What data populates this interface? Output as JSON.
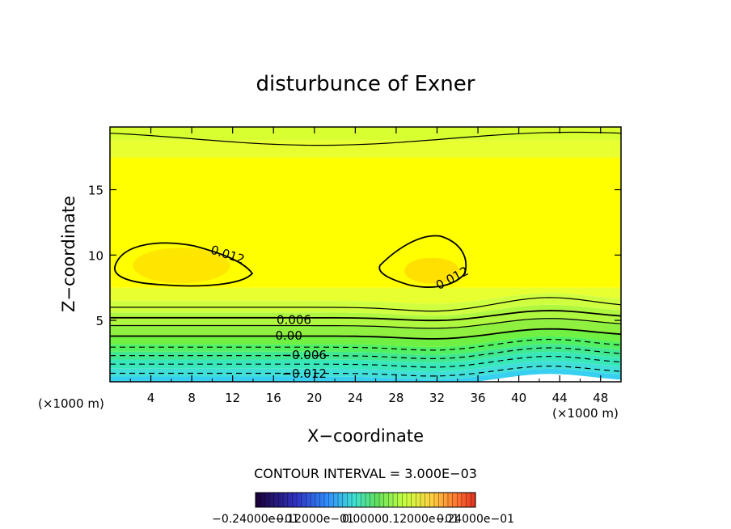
{
  "chart_data": {
    "type": "contour",
    "title": "disturbunce of Exner",
    "xlabel": "X−coordinate",
    "ylabel": "Z−coordinate",
    "x_unit": "(×1000 m)",
    "y_unit": "(×1000 m)",
    "xlim": [
      0,
      50
    ],
    "ylim": [
      0.3,
      19.8
    ],
    "xticks": [
      4,
      8,
      12,
      16,
      20,
      24,
      28,
      32,
      36,
      40,
      44,
      48
    ],
    "yticks": [
      5,
      10,
      15
    ],
    "contour_interval_text": "CONTOUR INTERVAL = 3.000E−03",
    "contour_labels": [
      {
        "text": "0.012",
        "x": 11.5,
        "z": 10.0
      },
      {
        "text": "0.012",
        "x": 33.5,
        "z": 8.2
      },
      {
        "text": "0.006",
        "x": 18.0,
        "z": 5.0
      },
      {
        "text": "0.00",
        "x": 17.5,
        "z": 3.8
      },
      {
        "text": "−0.006",
        "x": 19.0,
        "z": 2.3
      },
      {
        "text": "−0.012",
        "x": 19.0,
        "z": 0.9
      }
    ],
    "colorbar": {
      "min": -0.024,
      "max": 0.024,
      "tick_labels": [
        "−0.24000e−01",
        "−0.12000e−01",
        "0.00000",
        "0.12000e−01",
        "0.24000e−01"
      ]
    },
    "grid": false
  }
}
